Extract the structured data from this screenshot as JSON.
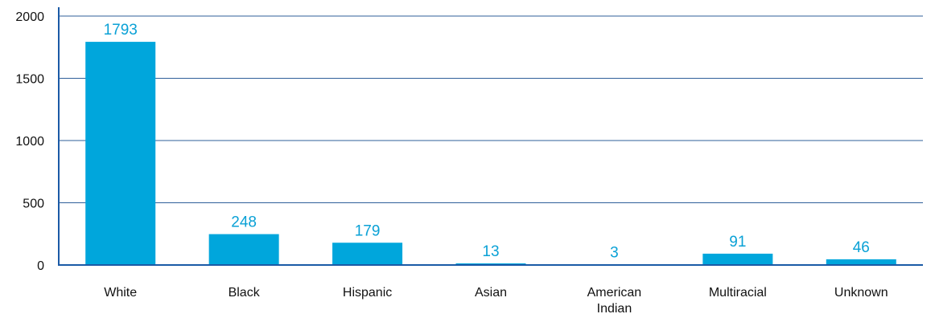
{
  "chart_data": {
    "type": "bar",
    "categories": [
      "White",
      "Black",
      "Hispanic",
      "Asian",
      "American Indian",
      "Multiracial",
      "Unknown"
    ],
    "category_lines": [
      [
        "White"
      ],
      [
        "Black"
      ],
      [
        "Hispanic"
      ],
      [
        "Asian"
      ],
      [
        "American",
        "Indian"
      ],
      [
        "Multiracial"
      ],
      [
        "Unknown"
      ]
    ],
    "values": [
      1793,
      248,
      179,
      13,
      3,
      91,
      46
    ],
    "data_labels": [
      "1793",
      "248",
      "179",
      "13",
      "3",
      "91",
      "46"
    ],
    "title": "",
    "xlabel": "",
    "ylabel": "",
    "ylim": [
      0,
      2000
    ],
    "yticks": [
      0,
      500,
      1000,
      1500,
      2000
    ],
    "ytick_labels": [
      "0",
      "500",
      "1000",
      "1500",
      "2000"
    ],
    "grid": true,
    "legend": "none",
    "colors": {
      "bar": "#00a6dc",
      "data_label": "#0aa1d6",
      "grid": "#2f5f9a",
      "axis": "#1b5aa6",
      "text": "#111111"
    }
  }
}
